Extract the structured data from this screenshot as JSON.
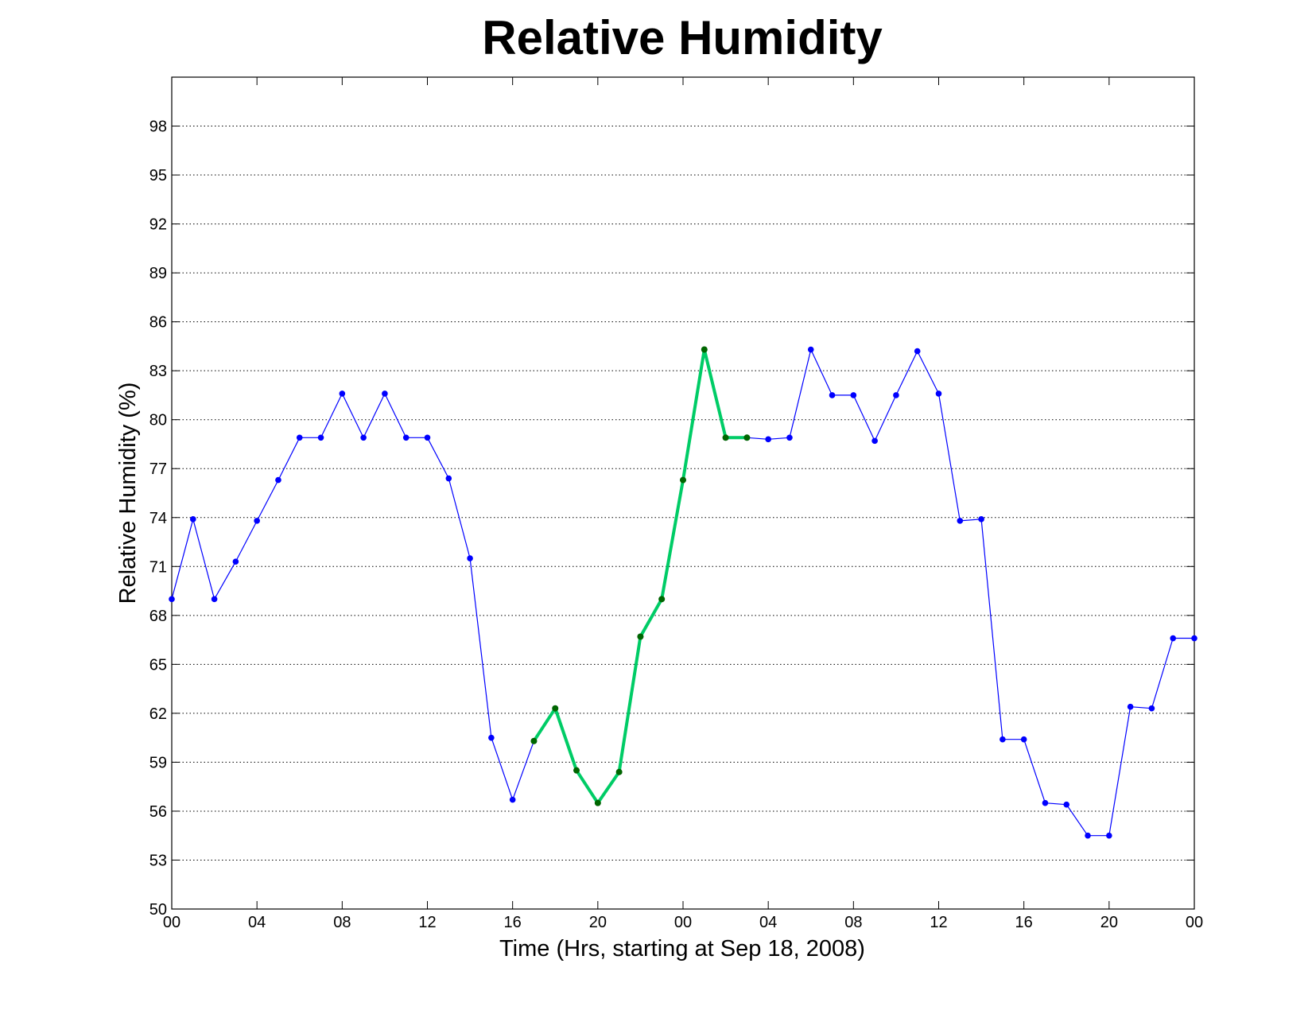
{
  "chart_data": {
    "type": "line",
    "title": "Relative Humidity",
    "xlabel": "Time (Hrs, starting at Sep 18, 2008)",
    "ylabel": "Relative Humidity (%)",
    "xlim": [
      0,
      48
    ],
    "ylim": [
      50,
      101
    ],
    "grid": "horizontal dotted",
    "x_ticks": [
      0,
      4,
      8,
      12,
      16,
      20,
      24,
      28,
      32,
      36,
      40,
      44,
      48
    ],
    "x_tick_labels": [
      "00",
      "04",
      "08",
      "12",
      "16",
      "20",
      "00",
      "04",
      "08",
      "12",
      "16",
      "20",
      "00"
    ],
    "y_ticks": [
      50,
      53,
      56,
      59,
      62,
      65,
      68,
      71,
      74,
      77,
      80,
      83,
      86,
      89,
      92,
      95,
      98
    ],
    "series": [
      {
        "color": "#0000ff",
        "x": [
          0,
          1,
          2,
          3,
          4,
          5,
          6,
          7,
          8,
          9,
          10,
          11,
          12,
          13,
          14,
          15,
          16,
          17,
          18,
          19,
          20,
          21,
          22,
          23,
          24,
          25,
          26,
          27,
          28,
          29,
          30,
          31,
          32,
          33,
          34,
          35,
          36,
          37,
          38,
          39,
          40,
          41,
          42,
          43,
          44,
          45,
          46,
          47,
          48
        ],
        "values": [
          69.0,
          73.9,
          69.0,
          71.3,
          73.8,
          76.3,
          78.9,
          78.9,
          81.6,
          78.9,
          81.6,
          78.9,
          78.9,
          76.4,
          71.5,
          60.5,
          56.7,
          60.3,
          62.3,
          58.5,
          56.5,
          58.4,
          66.7,
          69.0,
          76.3,
          84.3,
          78.9,
          78.9,
          78.8,
          78.9,
          84.3,
          81.5,
          81.5,
          78.7,
          81.5,
          84.2,
          81.6,
          73.8,
          73.9,
          60.4,
          60.4,
          56.5,
          56.4,
          54.5,
          54.5,
          62.4,
          62.3,
          66.6,
          66.6
        ]
      },
      {
        "color": "#00cc66",
        "marker_color": "#006600",
        "x": [
          17,
          18,
          19,
          20,
          21,
          22,
          23,
          24,
          25,
          26,
          27
        ],
        "values": [
          60.3,
          62.3,
          58.5,
          56.5,
          58.4,
          66.7,
          69.0,
          76.3,
          84.3,
          78.9,
          78.9
        ]
      }
    ]
  }
}
